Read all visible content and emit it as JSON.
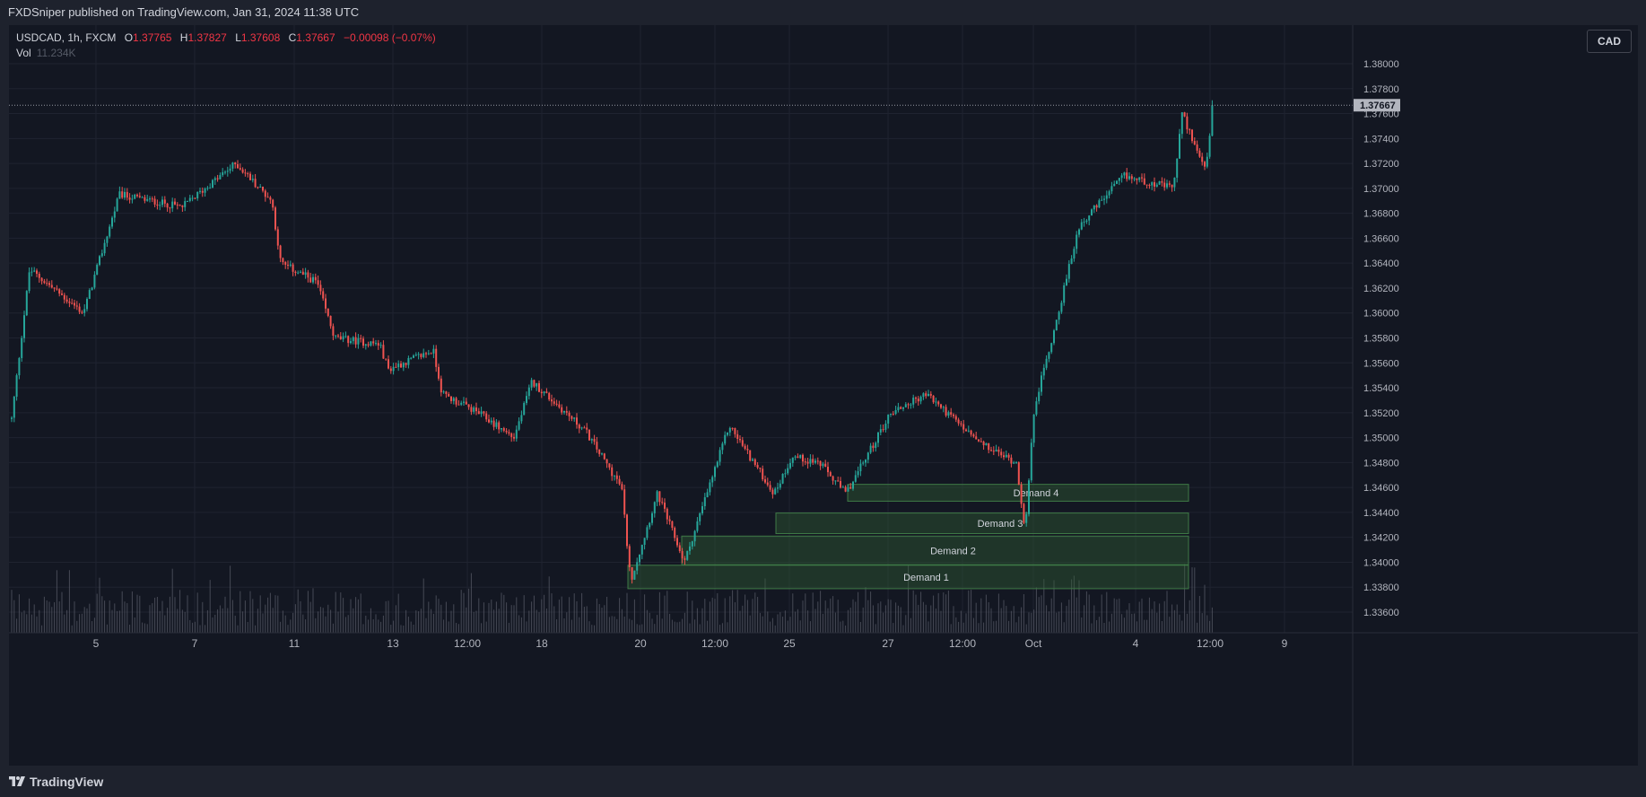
{
  "header": {
    "published": "FXDSniper published on TradingView.com, Jan 31, 2024 11:38 UTC"
  },
  "legend": {
    "symbol": "USDCAD, 1h, FXCM",
    "open_label": "O",
    "open": "1.37765",
    "high_label": "H",
    "high": "1.37827",
    "low_label": "L",
    "low": "1.37608",
    "close_label": "C",
    "close": "1.37667",
    "change": "−0.00098 (−0.07%)",
    "vol_label": "Vol",
    "vol_value": "11.234K"
  },
  "currency_button": "CAD",
  "last_price_label": "1.37667",
  "footer": {
    "brand": "TradingView"
  },
  "colors": {
    "background": "#131722",
    "up": "#26a69a",
    "down": "#ef5350",
    "zone_fill": "#2e5a34",
    "volume": "#5d606b"
  },
  "chart_data": {
    "type": "candlestick",
    "symbol": "USDCAD",
    "interval": "1h",
    "y_ticks": [
      "1.38000",
      "1.37800",
      "1.37600",
      "1.37400",
      "1.37200",
      "1.37000",
      "1.36800",
      "1.36600",
      "1.36400",
      "1.36200",
      "1.36000",
      "1.35800",
      "1.35600",
      "1.35400",
      "1.35200",
      "1.35000",
      "1.34800",
      "1.34600",
      "1.34400",
      "1.34200",
      "1.34000",
      "1.33800",
      "1.33600"
    ],
    "x_ticks": [
      "5",
      "7",
      "11",
      "13",
      "12:00",
      "18",
      "20",
      "12:00",
      "25",
      "27",
      "12:00",
      "Oct",
      "4",
      "12:00",
      "9"
    ],
    "ylim": [
      1.3345,
      1.3809
    ],
    "last_price": 1.37667,
    "price_path": [
      [
        0,
        1.3515
      ],
      [
        20,
        1.3635
      ],
      [
        80,
        1.36
      ],
      [
        120,
        1.3695
      ],
      [
        190,
        1.3685
      ],
      [
        250,
        1.372
      ],
      [
        290,
        1.369
      ],
      [
        300,
        1.364
      ],
      [
        340,
        1.3625
      ],
      [
        360,
        1.358
      ],
      [
        410,
        1.3575
      ],
      [
        420,
        1.3555
      ],
      [
        470,
        1.357
      ],
      [
        480,
        1.3535
      ],
      [
        520,
        1.352
      ],
      [
        560,
        1.35
      ],
      [
        580,
        1.3545
      ],
      [
        640,
        1.3505
      ],
      [
        680,
        1.346
      ],
      [
        690,
        1.3385
      ],
      [
        720,
        1.3455
      ],
      [
        750,
        1.34
      ],
      [
        800,
        1.351
      ],
      [
        850,
        1.3455
      ],
      [
        870,
        1.3485
      ],
      [
        900,
        1.348
      ],
      [
        930,
        1.3455
      ],
      [
        980,
        1.352
      ],
      [
        1020,
        1.3535
      ],
      [
        1080,
        1.3495
      ],
      [
        1120,
        1.348
      ],
      [
        1130,
        1.3425
      ],
      [
        1140,
        1.3525
      ],
      [
        1160,
        1.358
      ],
      [
        1190,
        1.367
      ],
      [
        1240,
        1.371
      ],
      [
        1295,
        1.37
      ],
      [
        1305,
        1.376
      ],
      [
        1330,
        1.3715
      ],
      [
        1345,
        1.378
      ],
      [
        1350,
        1.37667
      ]
    ],
    "zones": [
      {
        "label": "Demand 1",
        "top": 1.33976,
        "bottom": 1.33788,
        "start_x": 690,
        "end_x": 1315
      },
      {
        "label": "Demand 2",
        "top": 1.3421,
        "bottom": 1.3398,
        "start_x": 750,
        "end_x": 1315
      },
      {
        "label": "Demand 3",
        "top": 1.34395,
        "bottom": 1.3423,
        "start_x": 855,
        "end_x": 1315
      },
      {
        "label": "Demand 4",
        "top": 1.34625,
        "bottom": 1.3449,
        "start_x": 935,
        "end_x": 1315
      }
    ]
  }
}
